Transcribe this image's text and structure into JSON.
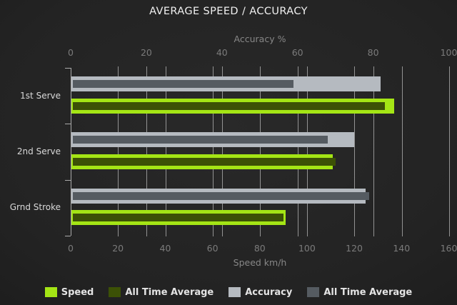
{
  "title": "AVERAGE SPEED / ACCURACY",
  "colors": {
    "background": "#232323",
    "speed": "#a4e515",
    "speed_all_time_average": "#3c5106",
    "accuracy": "#b5bac0",
    "accuracy_all_time_average": "#555b61",
    "gridline": "#d6d6d6",
    "title_text": "#f0f0f0",
    "tick_text": "#7b7b7b",
    "category_text": "#d9d9d9",
    "legend_text": "#e4e4e4"
  },
  "legend": {
    "items": [
      {
        "label": "Speed",
        "color": "#a4e515"
      },
      {
        "label": "All Time Average",
        "color": "#3c5106"
      },
      {
        "label": "Accuracy",
        "color": "#b5bac0"
      },
      {
        "label": "All Time Average",
        "color": "#555b61"
      }
    ]
  },
  "chart_data": {
    "type": "bar",
    "orientation": "horizontal",
    "title": "AVERAGE SPEED / ACCURACY",
    "categories": [
      "1st Serve",
      "2nd Serve",
      "Grnd Stroke"
    ],
    "axes": {
      "top": {
        "label": "Accuracy %",
        "min": 0,
        "max": 100,
        "ticks": [
          0,
          20,
          40,
          60,
          80,
          100
        ]
      },
      "bottom": {
        "label": "Speed km/h",
        "min": 0,
        "max": 160,
        "ticks": [
          0,
          20,
          40,
          60,
          80,
          100,
          120,
          140,
          160
        ]
      }
    },
    "series": [
      {
        "name": "Speed",
        "axis": "bottom",
        "role": "outer",
        "color": "#a4e515",
        "values": [
          137,
          111,
          91
        ]
      },
      {
        "name": "All Time Average",
        "axis": "bottom",
        "role": "inner",
        "color": "#3c5106",
        "values": [
          133,
          112,
          90
        ]
      },
      {
        "name": "Accuracy",
        "axis": "top",
        "role": "outer",
        "color": "#b5bac0",
        "values": [
          82,
          75,
          78
        ]
      },
      {
        "name": "All Time Average",
        "axis": "top",
        "role": "inner",
        "color": "#555b61",
        "values": [
          59,
          68,
          79
        ]
      }
    ],
    "grid": true,
    "legend_position": "bottom"
  }
}
